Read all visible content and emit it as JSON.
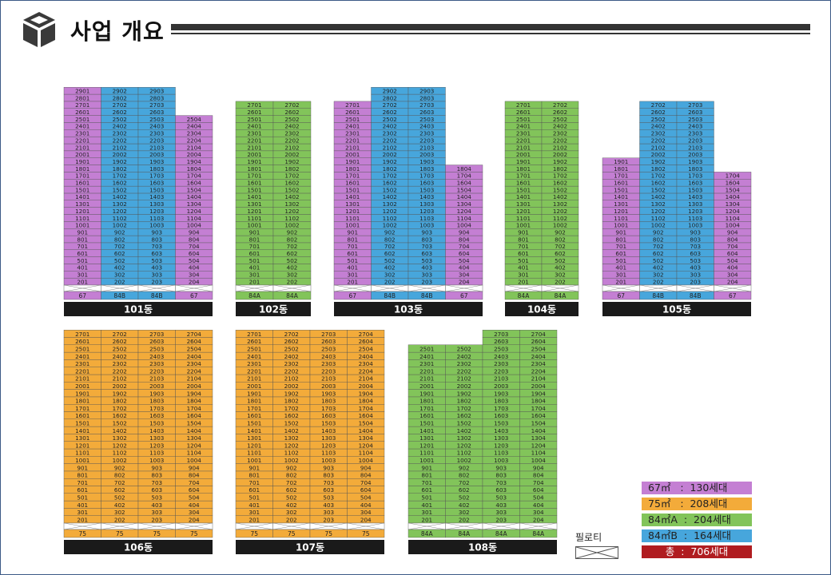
{
  "header": {
    "title": "사업 개요",
    "icon": "cube-icon"
  },
  "colors": {
    "t67": "#c47fd3",
    "t75": "#f3ab3a",
    "t84A": "#82c45a",
    "t84B": "#47a6dc",
    "total": "#b01c20",
    "piloti": "#ffffff",
    "label_bg": "#1a1a1a"
  },
  "legend": [
    {
      "key": "t67",
      "label": "67㎡   :  130세대"
    },
    {
      "key": "t75",
      "label": "75㎡   :  208세대"
    },
    {
      "key": "t84A",
      "label": "84㎡A  :  204세대"
    },
    {
      "key": "t84B",
      "label": "84㎡B  :  164세대"
    },
    {
      "key": "total",
      "label": "총  :  706세대"
    }
  ],
  "piloti_label": "필로티",
  "chart_data": {
    "type": "table",
    "buildings": [
      {
        "name": "101동",
        "units": [
          {
            "line": "01",
            "type": "t67",
            "top": 29,
            "label": "67"
          },
          {
            "line": "02",
            "type": "t84B",
            "top": 29,
            "label": "84B"
          },
          {
            "line": "03",
            "type": "t84B",
            "top": 29,
            "label": "84B"
          },
          {
            "line": "04",
            "type": "t67",
            "top": 25,
            "label": "67"
          }
        ]
      },
      {
        "name": "102동",
        "units": [
          {
            "line": "01",
            "type": "t84A",
            "top": 27,
            "label": "84A"
          },
          {
            "line": "02",
            "type": "t84A",
            "top": 27,
            "label": "84A"
          }
        ]
      },
      {
        "name": "103동",
        "units": [
          {
            "line": "01",
            "type": "t67",
            "top": 27,
            "label": "67"
          },
          {
            "line": "02",
            "type": "t84B",
            "top": 29,
            "label": "84B"
          },
          {
            "line": "03",
            "type": "t84B",
            "top": 29,
            "label": "84B"
          },
          {
            "line": "04",
            "type": "t67",
            "top": 18,
            "label": "67"
          }
        ]
      },
      {
        "name": "104동",
        "units": [
          {
            "line": "01",
            "type": "t84A",
            "top": 27,
            "label": "84A"
          },
          {
            "line": "02",
            "type": "t84A",
            "top": 27,
            "label": "84A"
          }
        ]
      },
      {
        "name": "105동",
        "units": [
          {
            "line": "01",
            "type": "t67",
            "top": 19,
            "label": "67"
          },
          {
            "line": "02",
            "type": "t84B",
            "top": 27,
            "label": "84B"
          },
          {
            "line": "03",
            "type": "t84B",
            "top": 27,
            "label": "84B"
          },
          {
            "line": "04",
            "type": "t67",
            "top": 17,
            "label": "67"
          }
        ]
      },
      {
        "name": "106동",
        "units": [
          {
            "line": "01",
            "type": "t75",
            "top": 27,
            "label": "75"
          },
          {
            "line": "02",
            "type": "t75",
            "top": 27,
            "label": "75"
          },
          {
            "line": "03",
            "type": "t75",
            "top": 27,
            "label": "75"
          },
          {
            "line": "04",
            "type": "t75",
            "top": 27,
            "label": "75"
          }
        ]
      },
      {
        "name": "107동",
        "units": [
          {
            "line": "01",
            "type": "t75",
            "top": 27,
            "label": "75"
          },
          {
            "line": "02",
            "type": "t75",
            "top": 27,
            "label": "75"
          },
          {
            "line": "03",
            "type": "t75",
            "top": 27,
            "label": "75"
          },
          {
            "line": "04",
            "type": "t75",
            "top": 27,
            "label": "75"
          }
        ]
      },
      {
        "name": "108동",
        "units": [
          {
            "line": "01",
            "type": "t84A",
            "top": 25,
            "label": "84A"
          },
          {
            "line": "02",
            "type": "t84A",
            "top": 25,
            "label": "84A"
          },
          {
            "line": "03",
            "type": "t84A",
            "top": 27,
            "label": "84A"
          },
          {
            "line": "04",
            "type": "t84A",
            "top": 27,
            "label": "84A"
          }
        ]
      }
    ]
  }
}
